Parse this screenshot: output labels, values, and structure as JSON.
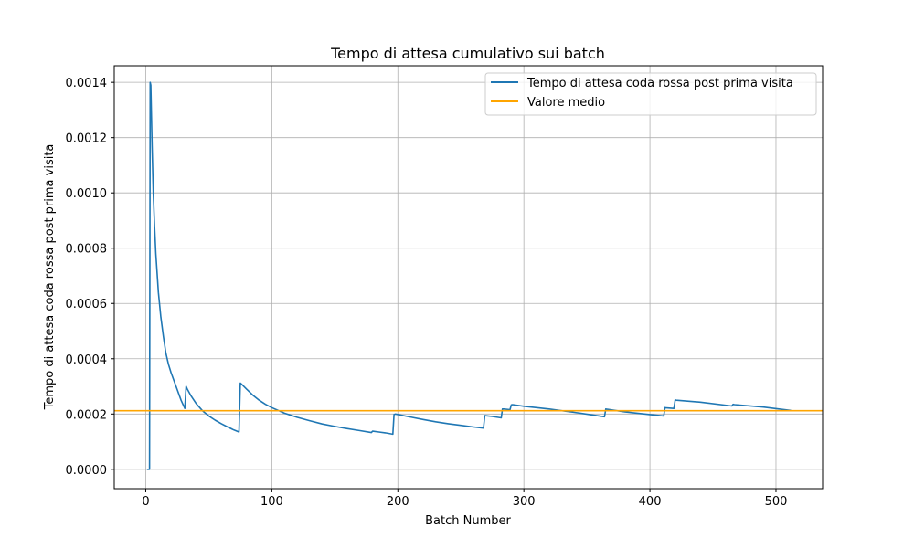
{
  "chart_data": {
    "type": "line",
    "title": "Tempo di attesa cumulativo sui batch",
    "xlabel": "Batch Number",
    "ylabel": "Tempo di attesa coda rossa post prima visita",
    "xlim": [
      -25,
      537
    ],
    "ylim": [
      -7e-05,
      0.00146
    ],
    "xticks": [
      0,
      100,
      200,
      300,
      400,
      500
    ],
    "xtick_labels": [
      "0",
      "100",
      "200",
      "300",
      "400",
      "500"
    ],
    "yticks": [
      0,
      0.0002,
      0.0004,
      0.0006,
      0.0008,
      0.001,
      0.0012,
      0.0014
    ],
    "ytick_labels": [
      "0.0000",
      "0.0002",
      "0.0004",
      "0.0006",
      "0.0008",
      "0.0010",
      "0.0012",
      "0.0014"
    ],
    "grid": true,
    "legend_position": "top-right",
    "series": [
      {
        "name": "Tempo di attesa coda rossa post prima visita",
        "color": "#1f77b4",
        "x": [
          1,
          3,
          3.5,
          4,
          5,
          6,
          7,
          8,
          10,
          12,
          14,
          16,
          18,
          20,
          24,
          28,
          31,
          32,
          33,
          36,
          40,
          45,
          50,
          55,
          60,
          65,
          70,
          74,
          75,
          76,
          80,
          85,
          90,
          95,
          100,
          110,
          120,
          130,
          140,
          150,
          160,
          170,
          179,
          180,
          185,
          190,
          196,
          197,
          198,
          210,
          220,
          230,
          240,
          250,
          260,
          268,
          269,
          275,
          282,
          283,
          284,
          289,
          290,
          291,
          300,
          320,
          340,
          364,
          365,
          366,
          380,
          400,
          411,
          412,
          413,
          419,
          420,
          421,
          440,
          465,
          466,
          467,
          490,
          512
        ],
        "y": [
          0,
          0,
          0.0014,
          0.00139,
          0.00117,
          0.001,
          0.00088,
          0.00078,
          0.00064,
          0.00055,
          0.00048,
          0.00042,
          0.00038,
          0.00035,
          0.0003,
          0.00025,
          0.00022,
          0.0003,
          0.00029,
          0.000265,
          0.000238,
          0.000212,
          0.000193,
          0.000178,
          0.000165,
          0.000153,
          0.000142,
          0.000135,
          0.000312,
          0.000308,
          0.00029,
          0.000268,
          0.00025,
          0.000235,
          0.000223,
          0.000203,
          0.000188,
          0.000176,
          0.000164,
          0.000155,
          0.000147,
          0.00014,
          0.000133,
          0.000138,
          0.000135,
          0.000132,
          0.000127,
          0.000198,
          0.0002,
          0.000189,
          0.00018,
          0.000172,
          0.000165,
          0.000159,
          0.000153,
          0.000149,
          0.000194,
          0.000191,
          0.000186,
          0.000218,
          0.000218,
          0.000216,
          0.000233,
          0.000234,
          0.000228,
          0.000218,
          0.000206,
          0.00019,
          0.000218,
          0.000217,
          0.000208,
          0.000198,
          0.000193,
          0.000223,
          0.000222,
          0.00022,
          0.000251,
          0.00025,
          0.000243,
          0.000229,
          0.000235,
          0.000234,
          0.000225,
          0.000213
        ]
      },
      {
        "name": "Valore medio",
        "color": "#ffa500",
        "constant": 0.000212
      }
    ]
  }
}
